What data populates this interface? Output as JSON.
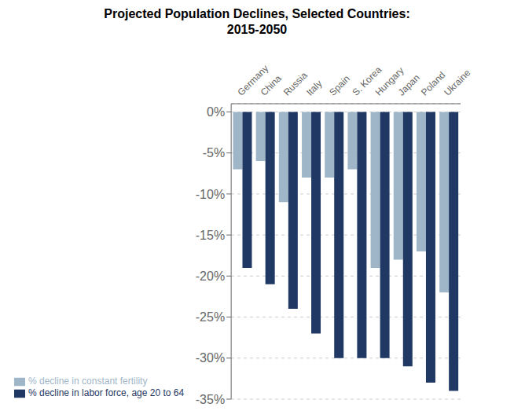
{
  "chart_data": {
    "type": "bar",
    "title": "Projected Population Declines, Selected Countries:\n2015-2050",
    "categories": [
      "Germany",
      "China",
      "Russia",
      "Italy",
      "Spain",
      "S. Korea",
      "Hungary",
      "Japan",
      "Poland",
      "Ukraine"
    ],
    "series": [
      {
        "name": "% decline in constant fertility",
        "color": "#9FB6C8",
        "values": [
          -7,
          -6,
          -11,
          -8,
          -8,
          -7,
          -19,
          -18,
          -17,
          -22
        ]
      },
      {
        "name": "% decline in labor force, age 20 to 64",
        "color": "#1F3864",
        "values": [
          -19,
          -21,
          -24,
          -27,
          -30,
          -30,
          -30,
          -31,
          -33,
          -34
        ]
      }
    ],
    "ylim": [
      -35,
      1
    ],
    "yticks": [
      {
        "value": 0,
        "label": "0%"
      },
      {
        "value": -5,
        "label": "-5%"
      },
      {
        "value": -10,
        "label": "-10%"
      },
      {
        "value": -15,
        "label": "-15%"
      },
      {
        "value": -20,
        "label": "-20%"
      },
      {
        "value": -25,
        "label": "-25%"
      },
      {
        "value": -30,
        "label": "-30%"
      },
      {
        "value": -35,
        "label": "-35%"
      }
    ],
    "grid": true,
    "legend": "lower left"
  }
}
